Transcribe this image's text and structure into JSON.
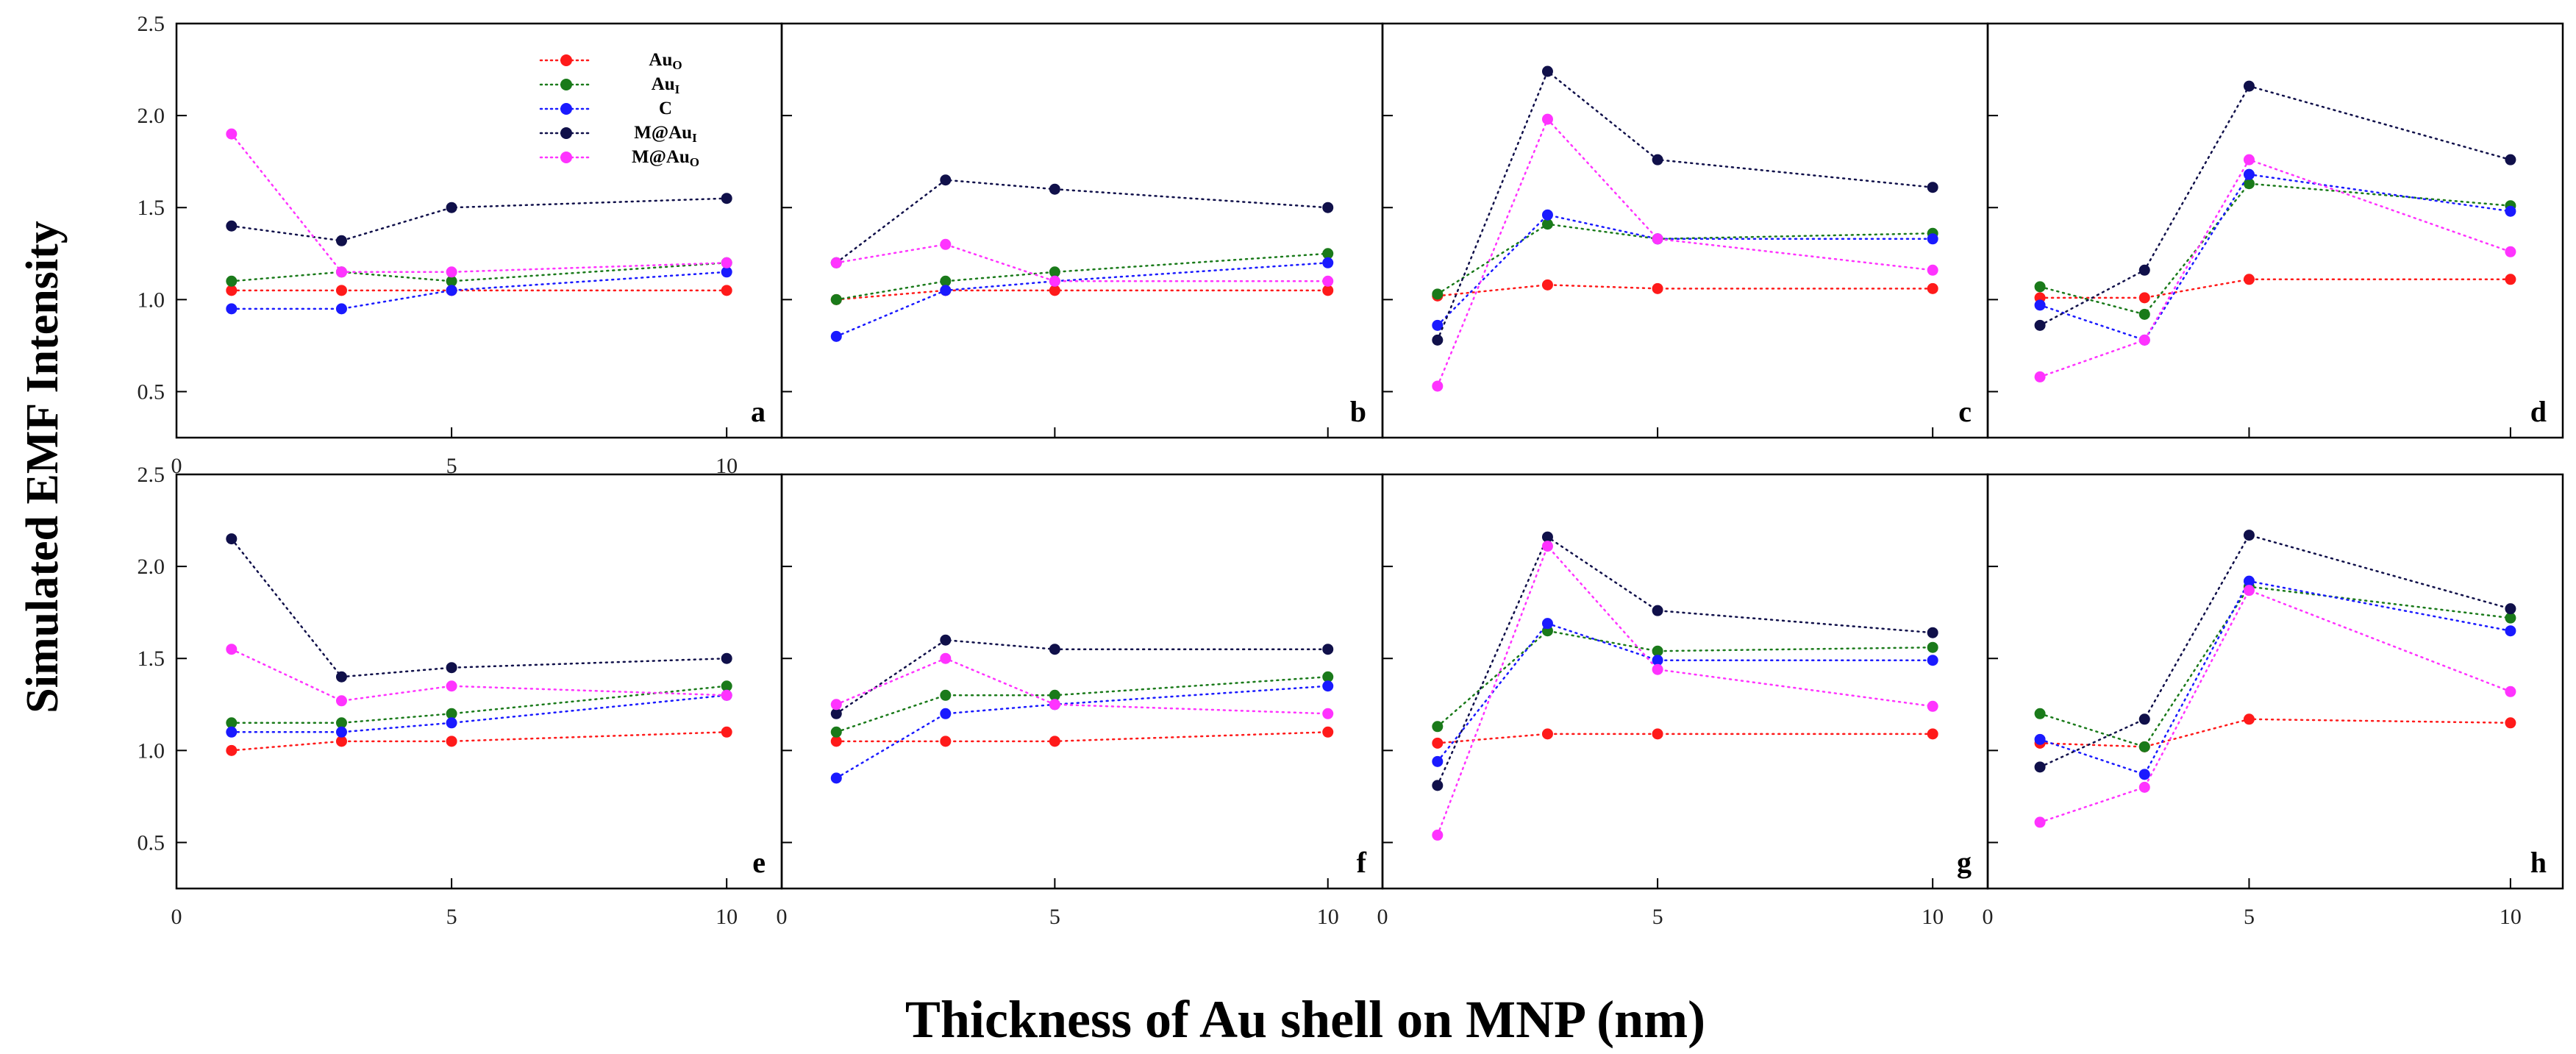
{
  "figure": {
    "ylabel": "Simulated EMF Intensity",
    "xlabel": "Thickness of Au shell on MNP (nm)"
  },
  "legend": [
    {
      "name": "Au",
      "sub": "O",
      "color": "#ff1a1a"
    },
    {
      "name": "Au",
      "sub": "I",
      "color": "#1a7a1a"
    },
    {
      "name": "C",
      "sub": "",
      "color": "#1a1aff"
    },
    {
      "name": "M@Au",
      "sub": "I",
      "color": "#10104a"
    },
    {
      "name": "M@Au",
      "sub": "O",
      "color": "#ff33ff"
    }
  ],
  "chart_data": [
    {
      "type": "line",
      "panel": "a",
      "x": [
        1,
        3,
        5,
        10
      ],
      "xlim": [
        0,
        11
      ],
      "ylim": [
        0.25,
        2.5
      ],
      "xticks": [
        0,
        5,
        10
      ],
      "yticks": [
        0.5,
        1.0,
        1.5,
        2.0,
        2.5
      ],
      "series": [
        {
          "name": "AuO",
          "values": [
            1.05,
            1.05,
            1.05,
            1.05
          ]
        },
        {
          "name": "AuI",
          "values": [
            1.1,
            1.15,
            1.1,
            1.2
          ]
        },
        {
          "name": "C",
          "values": [
            0.95,
            0.95,
            1.05,
            1.15
          ]
        },
        {
          "name": "M@AuI",
          "values": [
            1.4,
            1.32,
            1.5,
            1.55
          ]
        },
        {
          "name": "M@AuO",
          "values": [
            1.9,
            1.15,
            1.15,
            1.2
          ]
        }
      ]
    },
    {
      "type": "line",
      "panel": "b",
      "x": [
        1,
        3,
        5,
        10
      ],
      "xlim": [
        0,
        11
      ],
      "ylim": [
        0.25,
        2.5
      ],
      "xticks": [],
      "yticks": [],
      "series": [
        {
          "name": "AuO",
          "values": [
            1.0,
            1.05,
            1.05,
            1.05
          ]
        },
        {
          "name": "AuI",
          "values": [
            1.0,
            1.1,
            1.15,
            1.25
          ]
        },
        {
          "name": "C",
          "values": [
            0.8,
            1.05,
            1.1,
            1.2
          ]
        },
        {
          "name": "M@AuI",
          "values": [
            1.2,
            1.65,
            1.6,
            1.5
          ]
        },
        {
          "name": "M@AuO",
          "values": [
            1.2,
            1.3,
            1.1,
            1.1
          ]
        }
      ]
    },
    {
      "type": "line",
      "panel": "c",
      "x": [
        1,
        3,
        5,
        10
      ],
      "xlim": [
        0,
        11
      ],
      "ylim": [
        0.25,
        2.5
      ],
      "xticks": [],
      "yticks": [],
      "series": [
        {
          "name": "AuO",
          "values": [
            1.02,
            1.08,
            1.06,
            1.06
          ]
        },
        {
          "name": "AuI",
          "values": [
            1.03,
            1.41,
            1.33,
            1.36
          ]
        },
        {
          "name": "C",
          "values": [
            0.86,
            1.46,
            1.33,
            1.33
          ]
        },
        {
          "name": "M@AuI",
          "values": [
            0.78,
            2.24,
            1.76,
            1.61
          ]
        },
        {
          "name": "M@AuO",
          "values": [
            0.53,
            1.98,
            1.33,
            1.16
          ]
        }
      ]
    },
    {
      "type": "line",
      "panel": "d",
      "x": [
        1,
        3,
        5,
        10
      ],
      "xlim": [
        0,
        11
      ],
      "ylim": [
        0.25,
        2.5
      ],
      "xticks": [],
      "yticks": [],
      "series": [
        {
          "name": "AuO",
          "values": [
            1.01,
            1.01,
            1.11,
            1.11
          ]
        },
        {
          "name": "AuI",
          "values": [
            1.07,
            0.92,
            1.63,
            1.51
          ]
        },
        {
          "name": "C",
          "values": [
            0.97,
            0.78,
            1.68,
            1.48
          ]
        },
        {
          "name": "M@AuI",
          "values": [
            0.86,
            1.16,
            2.16,
            1.76
          ]
        },
        {
          "name": "M@AuO",
          "values": [
            0.58,
            0.78,
            1.76,
            1.26
          ]
        }
      ]
    },
    {
      "type": "line",
      "panel": "e",
      "x": [
        1,
        3,
        5,
        10
      ],
      "xlim": [
        0,
        11
      ],
      "ylim": [
        0.25,
        2.5
      ],
      "xticks": [
        0,
        5,
        10
      ],
      "yticks": [
        0.5,
        1.0,
        1.5,
        2.0,
        2.5
      ],
      "series": [
        {
          "name": "AuO",
          "values": [
            1.0,
            1.05,
            1.05,
            1.1
          ]
        },
        {
          "name": "AuI",
          "values": [
            1.15,
            1.15,
            1.2,
            1.35
          ]
        },
        {
          "name": "C",
          "values": [
            1.1,
            1.1,
            1.15,
            1.3
          ]
        },
        {
          "name": "M@AuI",
          "values": [
            2.15,
            1.4,
            1.45,
            1.5
          ]
        },
        {
          "name": "M@AuO",
          "values": [
            1.55,
            1.27,
            1.35,
            1.3
          ]
        }
      ]
    },
    {
      "type": "line",
      "panel": "f",
      "x": [
        1,
        3,
        5,
        10
      ],
      "xlim": [
        0,
        11
      ],
      "ylim": [
        0.25,
        2.5
      ],
      "xticks": [
        0,
        5,
        10
      ],
      "yticks": [],
      "series": [
        {
          "name": "AuO",
          "values": [
            1.05,
            1.05,
            1.05,
            1.1
          ]
        },
        {
          "name": "AuI",
          "values": [
            1.1,
            1.3,
            1.3,
            1.4
          ]
        },
        {
          "name": "C",
          "values": [
            0.85,
            1.2,
            1.25,
            1.35
          ]
        },
        {
          "name": "M@AuI",
          "values": [
            1.2,
            1.6,
            1.55,
            1.55
          ]
        },
        {
          "name": "M@AuO",
          "values": [
            1.25,
            1.5,
            1.25,
            1.2
          ]
        }
      ]
    },
    {
      "type": "line",
      "panel": "g",
      "x": [
        1,
        3,
        5,
        10
      ],
      "xlim": [
        0,
        11
      ],
      "ylim": [
        0.25,
        2.5
      ],
      "xticks": [
        0,
        5,
        10
      ],
      "yticks": [],
      "series": [
        {
          "name": "AuO",
          "values": [
            1.04,
            1.09,
            1.09,
            1.09
          ]
        },
        {
          "name": "AuI",
          "values": [
            1.13,
            1.65,
            1.54,
            1.56
          ]
        },
        {
          "name": "C",
          "values": [
            0.94,
            1.69,
            1.49,
            1.49
          ]
        },
        {
          "name": "M@AuI",
          "values": [
            0.81,
            2.16,
            1.76,
            1.64
          ]
        },
        {
          "name": "M@AuO",
          "values": [
            0.54,
            2.11,
            1.44,
            1.24
          ]
        }
      ]
    },
    {
      "type": "line",
      "panel": "h",
      "x": [
        1,
        3,
        5,
        10
      ],
      "xlim": [
        0,
        11
      ],
      "ylim": [
        0.25,
        2.5
      ],
      "xticks": [
        0,
        5,
        10
      ],
      "yticks": [],
      "series": [
        {
          "name": "AuO",
          "values": [
            1.04,
            1.02,
            1.17,
            1.15
          ]
        },
        {
          "name": "AuI",
          "values": [
            1.2,
            1.02,
            1.89,
            1.72
          ]
        },
        {
          "name": "C",
          "values": [
            1.06,
            0.87,
            1.92,
            1.65
          ]
        },
        {
          "name": "M@AuI",
          "values": [
            0.91,
            1.17,
            2.17,
            1.77
          ]
        },
        {
          "name": "M@AuO",
          "values": [
            0.61,
            0.8,
            1.87,
            1.32
          ]
        }
      ]
    }
  ]
}
